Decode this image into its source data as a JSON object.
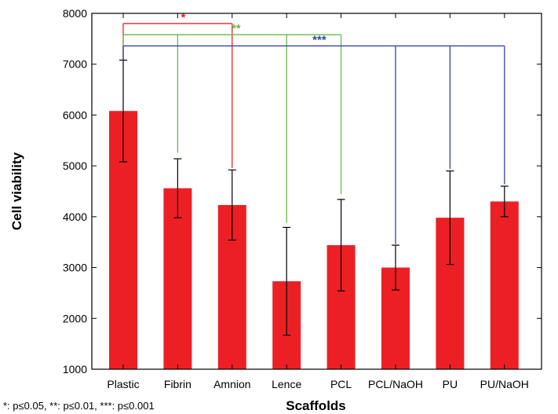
{
  "chart_data": {
    "type": "bar",
    "title": "",
    "xlabel": "Scaffolds",
    "ylabel": "Cell viability",
    "categories": [
      "Plastic",
      "Fibrin",
      "Amnion",
      "Lence",
      "PCL",
      "PCL/NaOH",
      "PU",
      "PU/NaOH"
    ],
    "values": [
      6080,
      4560,
      4230,
      2730,
      3440,
      3000,
      3980,
      4300
    ],
    "errors": [
      1000,
      580,
      690,
      1060,
      900,
      440,
      920,
      300
    ],
    "ylim": [
      1000,
      8000
    ],
    "yticks": [
      1000,
      2000,
      3000,
      4000,
      5000,
      6000,
      7000,
      8000
    ],
    "grid": false,
    "bar_color": "#ec2024",
    "significance": [
      {
        "label": "*",
        "color": "#ec2024",
        "bar_y": 7800,
        "from": 0,
        "to": [
          2
        ],
        "drop_to": [
          4960
        ]
      },
      {
        "label": "**",
        "color": "#66bb44",
        "bar_y": 7580,
        "from": 0,
        "to": [
          1,
          3,
          4
        ],
        "drop_to": [
          5260,
          3880,
          4440
        ]
      },
      {
        "label": "***",
        "color": "#3344aa",
        "bar_y": 7360,
        "from": 0,
        "to": [
          5,
          6,
          7
        ],
        "drop_to": [
          3460,
          4940,
          4640
        ]
      }
    ],
    "footnote": "*: p≤0.05, **: p≤0.01, ***: p≤0.001"
  }
}
